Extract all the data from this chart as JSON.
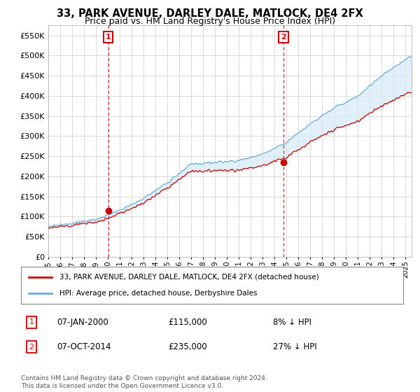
{
  "title": "33, PARK AVENUE, DARLEY DALE, MATLOCK, DE4 2FX",
  "subtitle": "Price paid vs. HM Land Registry's House Price Index (HPI)",
  "title_fontsize": 10.5,
  "subtitle_fontsize": 9,
  "ytick_values": [
    0,
    50000,
    100000,
    150000,
    200000,
    250000,
    300000,
    350000,
    400000,
    450000,
    500000,
    550000
  ],
  "ylim": [
    0,
    575000
  ],
  "hpi_color": "#6baed6",
  "hpi_fill_color": "#d6eaf8",
  "price_color": "#cc0000",
  "vline_color": "#cc0000",
  "grid_color": "#cccccc",
  "bg_color": "#ffffff",
  "marker1_year": 2000.04,
  "marker1_value": 115000,
  "marker1_label": "1",
  "marker1_date": "07-JAN-2000",
  "marker1_price": "£115,000",
  "marker1_pct": "8% ↓ HPI",
  "marker2_year": 2014.75,
  "marker2_value": 235000,
  "marker2_label": "2",
  "marker2_date": "07-OCT-2014",
  "marker2_price": "£235,000",
  "marker2_pct": "27% ↓ HPI",
  "legend_entry1": "33, PARK AVENUE, DARLEY DALE, MATLOCK, DE4 2FX (detached house)",
  "legend_entry2": "HPI: Average price, detached house, Derbyshire Dales",
  "footnote": "Contains HM Land Registry data © Crown copyright and database right 2024.\nThis data is licensed under the Open Government Licence v3.0.",
  "xmin": 1995.0,
  "xmax": 2025.5
}
